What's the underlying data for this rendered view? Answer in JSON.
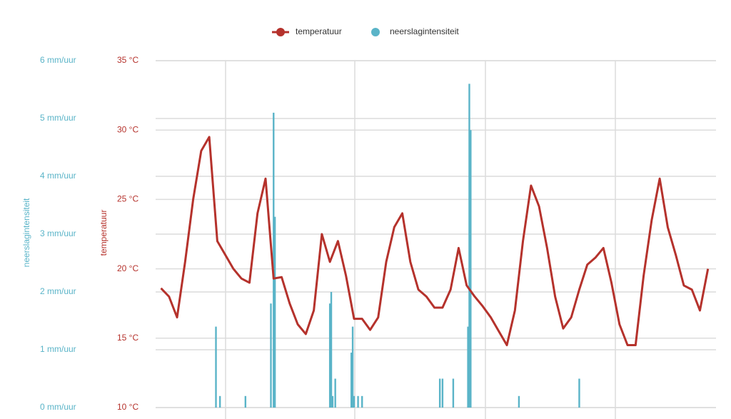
{
  "chart_data": {
    "type": "line-bar",
    "legend": "top",
    "grid": true,
    "xlim": [
      -2,
      207
    ],
    "ylim": [
      10,
      35
    ],
    "yticks": [
      {
        "value": 10,
        "label": "10 °C"
      },
      {
        "value": 15,
        "label": "15 °C"
      },
      {
        "value": 20,
        "label": "20 °C"
      },
      {
        "value": 25,
        "label": "25 °C"
      },
      {
        "value": 30,
        "label": "30 °C"
      },
      {
        "value": 35,
        "label": "35 °C"
      }
    ],
    "ylabel": "temperatuur",
    "y2lim": [
      0,
      6
    ],
    "y2ticks": [
      {
        "value": 0,
        "label": "0 mm/uur"
      },
      {
        "value": 1,
        "label": "1 mm/uur"
      },
      {
        "value": 2,
        "label": "2 mm/uur"
      },
      {
        "value": 3,
        "label": "3 mm/uur"
      },
      {
        "value": 4,
        "label": "4 mm/uur"
      },
      {
        "value": 5,
        "label": "5 mm/uur"
      },
      {
        "value": 6,
        "label": "6 mm/uur"
      }
    ],
    "y2label": "neerslagintensiteit",
    "series": [
      {
        "name": "temperatuur",
        "type": "line",
        "color": "#b5322c",
        "x": [
          0,
          3,
          6,
          9,
          12,
          15,
          18,
          21,
          24,
          27,
          30,
          33,
          36,
          39,
          42,
          45,
          48,
          51,
          54,
          57,
          60,
          63,
          66,
          69,
          72,
          75,
          78,
          81,
          84,
          87,
          90,
          93,
          96,
          99,
          102,
          105,
          108,
          111,
          114,
          117,
          120,
          123,
          126,
          129,
          132,
          135,
          138,
          141,
          144,
          147,
          150,
          153,
          156,
          159,
          162,
          165,
          168,
          171,
          174,
          177,
          180,
          183,
          186,
          189,
          192,
          195,
          198,
          201,
          204
        ],
        "values": [
          18.6,
          18.0,
          16.5,
          20.5,
          25.0,
          28.5,
          29.5,
          22.0,
          21.0,
          20.0,
          19.3,
          19.0,
          24.0,
          26.5,
          19.3,
          19.4,
          17.5,
          16.0,
          15.3,
          17.0,
          22.5,
          20.5,
          22.0,
          19.5,
          16.4,
          16.4,
          15.6,
          16.5,
          20.5,
          23.0,
          24.0,
          20.5,
          18.5,
          18.0,
          17.2,
          17.2,
          18.5,
          21.5,
          18.8,
          18.0,
          17.3,
          16.5,
          15.5,
          14.5,
          17.0,
          22.0,
          26.0,
          24.5,
          21.5,
          18.0,
          15.7,
          16.5,
          18.5,
          20.3,
          20.8,
          21.5,
          19.0,
          16.0,
          14.5,
          14.5,
          19.5,
          23.5,
          26.5,
          23.0,
          21.0,
          18.8,
          18.5,
          17.0,
          20.0
        ]
      },
      {
        "name": "neerslagintensiteit",
        "type": "bar",
        "axis": "y2",
        "color": "#5ab4c8",
        "x": [
          20.5,
          22,
          31.5,
          41,
          42,
          42.5,
          63,
          63.5,
          64,
          65,
          71,
          71.5,
          72,
          73.5,
          75,
          104,
          105,
          109,
          114.5,
          115,
          115.5,
          133.5,
          156
        ],
        "values": [
          1.4,
          0.2,
          0.2,
          1.8,
          5.1,
          3.3,
          1.8,
          2.0,
          0.2,
          0.5,
          0.95,
          1.4,
          0.2,
          0.2,
          0.2,
          0.5,
          0.5,
          0.5,
          1.4,
          5.6,
          4.8,
          0.2,
          0.5
        ]
      }
    ]
  }
}
